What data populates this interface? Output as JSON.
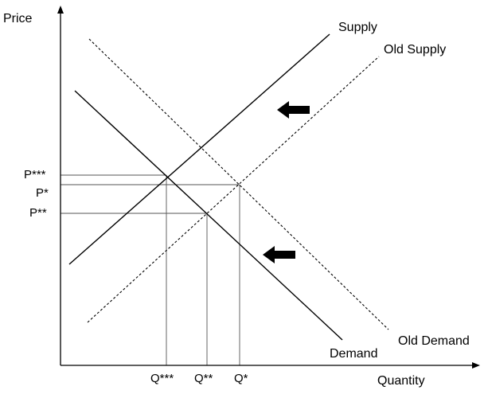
{
  "axes": {
    "y_label": "Price",
    "x_label": "Quantity"
  },
  "curves": {
    "supply": "Supply",
    "old_supply": "Old Supply",
    "demand": "Demand",
    "old_demand": "Old Demand"
  },
  "price_ticks": {
    "p_triple": "P***",
    "p_star": "P*",
    "p_double": "P**"
  },
  "quantity_ticks": {
    "q_triple": "Q***",
    "q_double": "Q**",
    "q_star": "Q*"
  },
  "shift_arrows": {
    "supply_shift": "left",
    "demand_shift": "left"
  },
  "colors": {
    "line": "#000000",
    "guide": "#555555",
    "arrow": "#000000"
  }
}
